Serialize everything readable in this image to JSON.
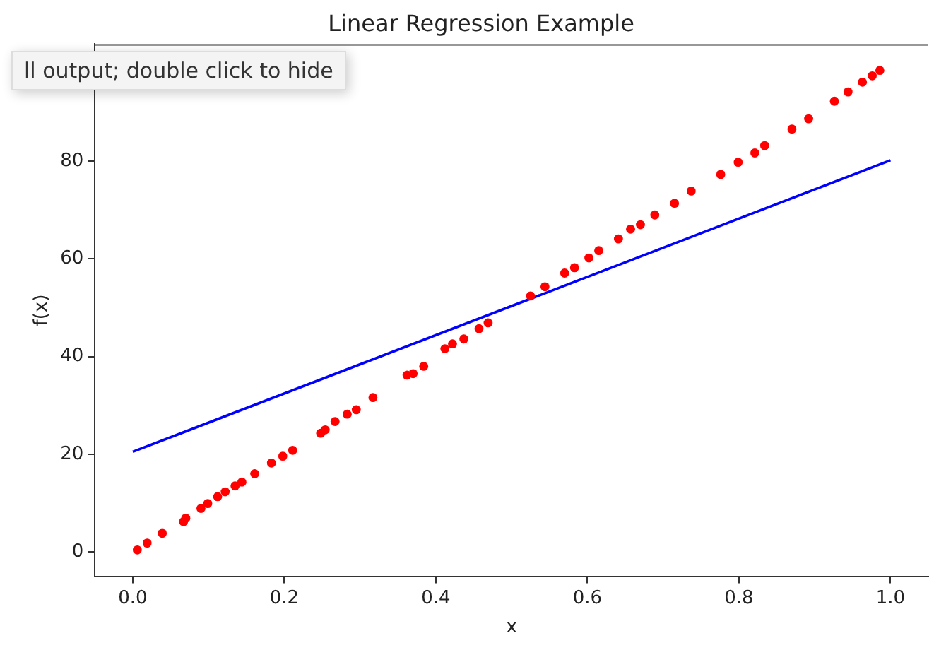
{
  "chart_data": {
    "type": "scatter",
    "title": "Linear Regression Example",
    "xlabel": "x",
    "ylabel": "f(x)",
    "annotations": [
      "ll output; double click to hide"
    ],
    "xlim": [
      -0.05,
      1.05
    ],
    "xticks": [
      {
        "value": 0,
        "label": "0.0"
      },
      0.2,
      0.4,
      0.6,
      0.8,
      {
        "value": 1,
        "label": "1.0"
      }
    ],
    "ylim": [
      -5,
      104
    ],
    "yticks": [
      0,
      20,
      40,
      60,
      80
    ],
    "grid": false,
    "legend": false,
    "marker": "circle",
    "series": [
      {
        "type": "scatter",
        "color": "#ff0000",
        "x": [
          0.006,
          0.019,
          0.039,
          0.067,
          0.07,
          0.09,
          0.099,
          0.112,
          0.122,
          0.135,
          0.144,
          0.161,
          0.183,
          0.198,
          0.211,
          0.248,
          0.254,
          0.267,
          0.283,
          0.295,
          0.317,
          0.362,
          0.37,
          0.384,
          0.412,
          0.422,
          0.437,
          0.457,
          0.469,
          0.525,
          0.544,
          0.57,
          0.583,
          0.602,
          0.615,
          0.641,
          0.657,
          0.67,
          0.689,
          0.715,
          0.737,
          0.776,
          0.799,
          0.821,
          0.834,
          0.87,
          0.892,
          0.926,
          0.944,
          0.963,
          0.976,
          0.986
        ],
        "values": [
          0.4,
          1.8,
          3.8,
          6.2,
          6.9,
          8.9,
          9.9,
          11.3,
          12.3,
          13.5,
          14.3,
          16,
          18.2,
          19.6,
          20.8,
          24.3,
          25,
          26.7,
          28.2,
          29.1,
          31.6,
          36.2,
          36.5,
          38,
          41.6,
          42.6,
          43.6,
          45.7,
          46.9,
          52.4,
          54.3,
          57.1,
          58.2,
          60.2,
          61.7,
          64.1,
          66.1,
          67,
          69,
          71.4,
          73.9,
          77.3,
          79.8,
          81.7,
          83.2,
          86.6,
          88.7,
          92.3,
          94.2,
          96.2,
          97.5,
          98.6
        ]
      },
      {
        "type": "line",
        "color": "#0000ff",
        "x": [
          0,
          1
        ],
        "values": [
          20.5,
          80.2
        ],
        "marker": "none",
        "line_style": "solid"
      }
    ]
  }
}
